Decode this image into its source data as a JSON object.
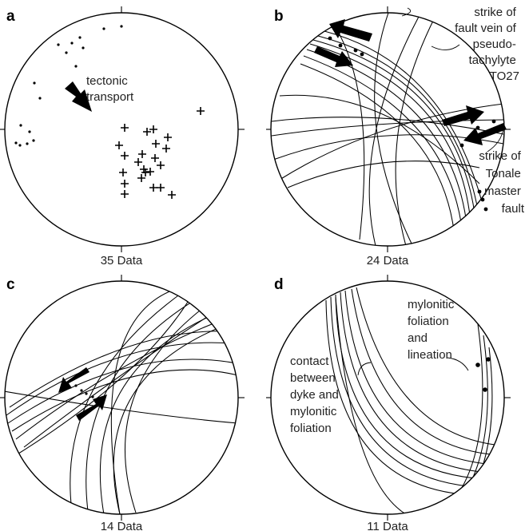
{
  "panels": {
    "a": {
      "letter": "a",
      "annotation": [
        "tectonic",
        "transport"
      ],
      "caption": "35 Data"
    },
    "b": {
      "letter": "b",
      "annotation_vein": [
        "strike of",
        "fault vein of",
        "pseudo-",
        "tachylyte",
        "TO27"
      ],
      "annotation_fault": [
        "strike of",
        "Tonale",
        "master",
        "fault"
      ],
      "caption": "24 Data"
    },
    "c": {
      "letter": "c",
      "caption": "14 Data"
    },
    "d": {
      "letter": "d",
      "annotation_contact": [
        "contact",
        "between",
        "dyke and",
        "mylonitic",
        "foliation"
      ],
      "annotation_mylonitic": [
        "mylonitic",
        "foliation",
        "and",
        "lineation"
      ],
      "caption": "11 Data"
    }
  }
}
